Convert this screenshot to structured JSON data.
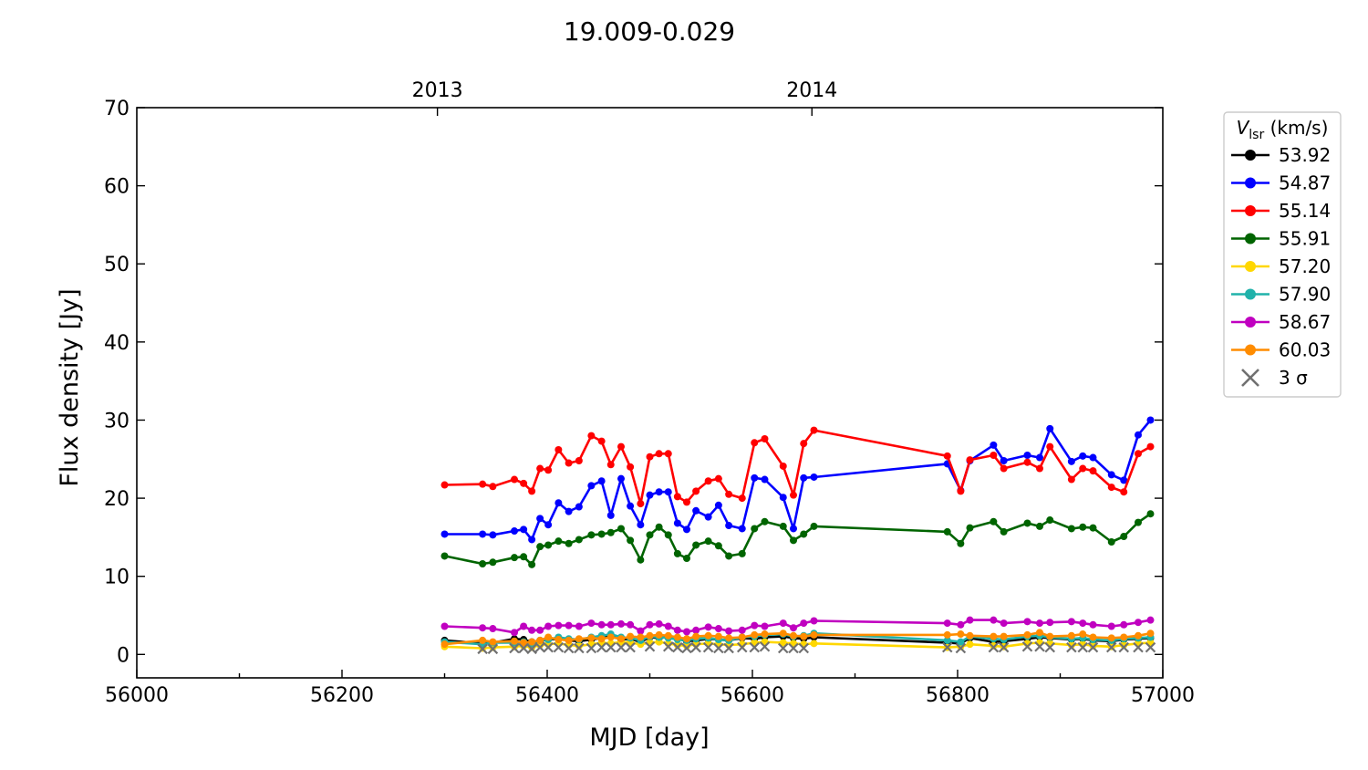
{
  "chart_data": {
    "type": "line",
    "title": "19.009-0.029",
    "xlabel": "MJD [day]",
    "ylabel": "Flux density [Jy]",
    "xlim": [
      56000,
      57000
    ],
    "ylim": [
      -3,
      70
    ],
    "xticks": [
      56000,
      56200,
      56400,
      56600,
      56800,
      57000
    ],
    "yticks": [
      0,
      10,
      20,
      30,
      40,
      50,
      60,
      70
    ],
    "top_axis": {
      "ticks": [
        {
          "mjd": 56293,
          "label": "2013"
        },
        {
          "mjd": 56658,
          "label": "2014"
        }
      ]
    },
    "legend": {
      "title_main": "V",
      "title_sub": "lsr",
      "title_unit": "(km/s)",
      "placement": "outside-right-top",
      "sigma_label": "3 σ"
    },
    "x": [
      56300,
      56337,
      56347,
      56368,
      56377,
      56385,
      56393,
      56401,
      56411,
      56421,
      56431,
      56443,
      56453,
      56462,
      56472,
      56481,
      56491,
      56500,
      56509,
      56518,
      56527,
      56536,
      56545,
      56557,
      56567,
      56577,
      56590,
      56602,
      56612,
      56630,
      56640,
      56650,
      56660,
      56790,
      56803,
      56812,
      56835,
      56845,
      56868,
      56880,
      56890,
      56911,
      56922,
      56932,
      56950,
      56962,
      56976,
      56988
    ],
    "series": [
      {
        "name": "53.92",
        "color": "#000000",
        "values": [
          1.8,
          1.4,
          1.5,
          2.0,
          1.9,
          1.6,
          1.7,
          1.9,
          2.0,
          1.8,
          1.7,
          1.9,
          2.1,
          2.4,
          1.9,
          2.0,
          1.6,
          2.2,
          2.1,
          2.3,
          2.0,
          1.7,
          1.8,
          2.0,
          1.9,
          1.8,
          2.1,
          2.0,
          2.2,
          2.3,
          2.1,
          2.0,
          2.2,
          1.5,
          1.4,
          2.1,
          1.6,
          1.7,
          2.0,
          2.2,
          2.1,
          1.9,
          2.0,
          1.8,
          1.7,
          1.9,
          2.0,
          2.1
        ]
      },
      {
        "name": "54.87",
        "color": "#0000ff",
        "values": [
          15.4,
          15.4,
          15.3,
          15.8,
          16.0,
          14.7,
          17.4,
          16.6,
          19.4,
          18.3,
          18.9,
          21.6,
          22.2,
          17.8,
          22.5,
          19.0,
          16.6,
          20.4,
          20.8,
          20.8,
          16.8,
          16.0,
          18.4,
          17.6,
          19.1,
          16.5,
          16.1,
          22.6,
          22.4,
          20.1,
          16.1,
          22.6,
          22.7,
          24.4,
          21.0,
          24.8,
          26.8,
          24.8,
          25.5,
          25.2,
          28.9,
          24.7,
          25.4,
          25.2,
          23.0,
          22.3,
          28.1,
          30.0
        ]
      },
      {
        "name": "55.14",
        "color": "#ff0000",
        "values": [
          21.7,
          21.8,
          21.5,
          22.4,
          21.9,
          20.9,
          23.8,
          23.6,
          26.2,
          24.5,
          24.8,
          28.0,
          27.3,
          24.3,
          26.6,
          24.0,
          19.3,
          25.3,
          25.7,
          25.7,
          20.2,
          19.5,
          20.9,
          22.2,
          22.5,
          20.5,
          20.0,
          27.1,
          27.6,
          24.1,
          20.4,
          27.0,
          28.7,
          25.4,
          20.9,
          24.9,
          25.5,
          23.8,
          24.6,
          23.8,
          26.6,
          22.4,
          23.8,
          23.5,
          21.4,
          20.8,
          25.7,
          26.6
        ]
      },
      {
        "name": "55.91",
        "color": "#006400",
        "values": [
          12.6,
          11.6,
          11.8,
          12.4,
          12.5,
          11.5,
          13.8,
          14.0,
          14.5,
          14.2,
          14.7,
          15.3,
          15.4,
          15.6,
          16.1,
          14.6,
          12.1,
          15.3,
          16.3,
          15.3,
          12.9,
          12.3,
          14.0,
          14.5,
          13.9,
          12.6,
          12.9,
          16.1,
          17.0,
          16.4,
          14.6,
          15.4,
          16.4,
          15.7,
          14.2,
          16.2,
          17.0,
          15.7,
          16.8,
          16.4,
          17.2,
          16.1,
          16.3,
          16.2,
          14.4,
          15.1,
          16.9,
          18.0
        ]
      },
      {
        "name": "57.20",
        "color": "#ffd700",
        "values": [
          1.0,
          0.8,
          0.9,
          1.0,
          1.1,
          0.9,
          1.2,
          1.3,
          1.4,
          1.2,
          1.1,
          1.3,
          1.5,
          1.4,
          1.6,
          1.5,
          1.3,
          1.5,
          1.6,
          1.4,
          1.2,
          1.1,
          1.3,
          1.4,
          1.3,
          1.2,
          1.3,
          1.5,
          1.6,
          1.5,
          1.4,
          1.3,
          1.4,
          0.9,
          1.0,
          1.3,
          1.1,
          1.0,
          1.4,
          1.5,
          1.4,
          1.2,
          1.3,
          1.1,
          1.0,
          1.2,
          1.4,
          1.5
        ]
      },
      {
        "name": "57.90",
        "color": "#20b2aa",
        "values": [
          1.6,
          1.3,
          1.5,
          1.5,
          1.6,
          1.4,
          1.8,
          1.9,
          2.2,
          2.0,
          1.9,
          2.2,
          2.4,
          2.6,
          2.2,
          2.1,
          1.8,
          2.3,
          2.2,
          2.1,
          1.9,
          1.8,
          2.0,
          2.1,
          1.9,
          1.8,
          2.2,
          2.3,
          2.5,
          2.6,
          2.3,
          2.4,
          2.7,
          1.8,
          1.6,
          2.3,
          2.0,
          1.9,
          2.3,
          2.4,
          2.2,
          2.0,
          2.1,
          1.9,
          1.8,
          2.0,
          2.1,
          2.2
        ]
      },
      {
        "name": "58.67",
        "color": "#c000c0",
        "values": [
          3.6,
          3.4,
          3.3,
          2.8,
          3.6,
          3.1,
          3.1,
          3.6,
          3.7,
          3.7,
          3.6,
          4.0,
          3.8,
          3.8,
          3.9,
          3.8,
          3.0,
          3.8,
          3.9,
          3.6,
          3.1,
          2.9,
          3.1,
          3.5,
          3.3,
          3.0,
          3.1,
          3.7,
          3.6,
          4.0,
          3.4,
          4.0,
          4.3,
          4.0,
          3.8,
          4.4,
          4.4,
          4.0,
          4.2,
          4.0,
          4.1,
          4.2,
          4.0,
          3.8,
          3.6,
          3.8,
          4.1,
          4.4
        ]
      },
      {
        "name": "60.03",
        "color": "#ff8c00",
        "values": [
          1.3,
          1.8,
          1.6,
          1.7,
          1.5,
          1.6,
          1.8,
          2.2,
          1.9,
          1.8,
          2.0,
          2.1,
          2.0,
          2.2,
          2.0,
          2.3,
          2.2,
          2.4,
          2.5,
          2.4,
          2.2,
          2.0,
          2.3,
          2.4,
          2.3,
          2.1,
          2.2,
          2.5,
          2.6,
          2.7,
          2.4,
          2.3,
          2.5,
          2.5,
          2.6,
          2.4,
          2.3,
          2.3,
          2.5,
          2.8,
          2.3,
          2.4,
          2.6,
          2.2,
          2.1,
          2.2,
          2.4,
          2.7
        ]
      }
    ],
    "sigma3": {
      "x": [
        56337,
        56347,
        56368,
        56377,
        56385,
        56393,
        56401,
        56411,
        56421,
        56431,
        56443,
        56453,
        56462,
        56472,
        56481,
        56500,
        56518,
        56527,
        56536,
        56545,
        56557,
        56567,
        56577,
        56590,
        56602,
        56612,
        56630,
        56640,
        56650,
        56790,
        56803,
        56835,
        56845,
        56868,
        56880,
        56890,
        56911,
        56922,
        56932,
        56950,
        56962,
        56976,
        56988
      ],
      "values": [
        0.7,
        0.7,
        0.8,
        0.8,
        0.7,
        0.9,
        0.9,
        0.9,
        0.8,
        0.8,
        0.8,
        0.9,
        0.9,
        0.9,
        0.9,
        1.0,
        1.0,
        0.9,
        0.8,
        0.9,
        0.9,
        0.8,
        0.8,
        0.9,
        0.9,
        1.0,
        0.8,
        0.8,
        0.8,
        0.9,
        0.8,
        0.9,
        0.9,
        1.0,
        1.0,
        0.9,
        0.9,
        0.9,
        0.9,
        0.9,
        0.9,
        0.9,
        0.9
      ]
    }
  }
}
